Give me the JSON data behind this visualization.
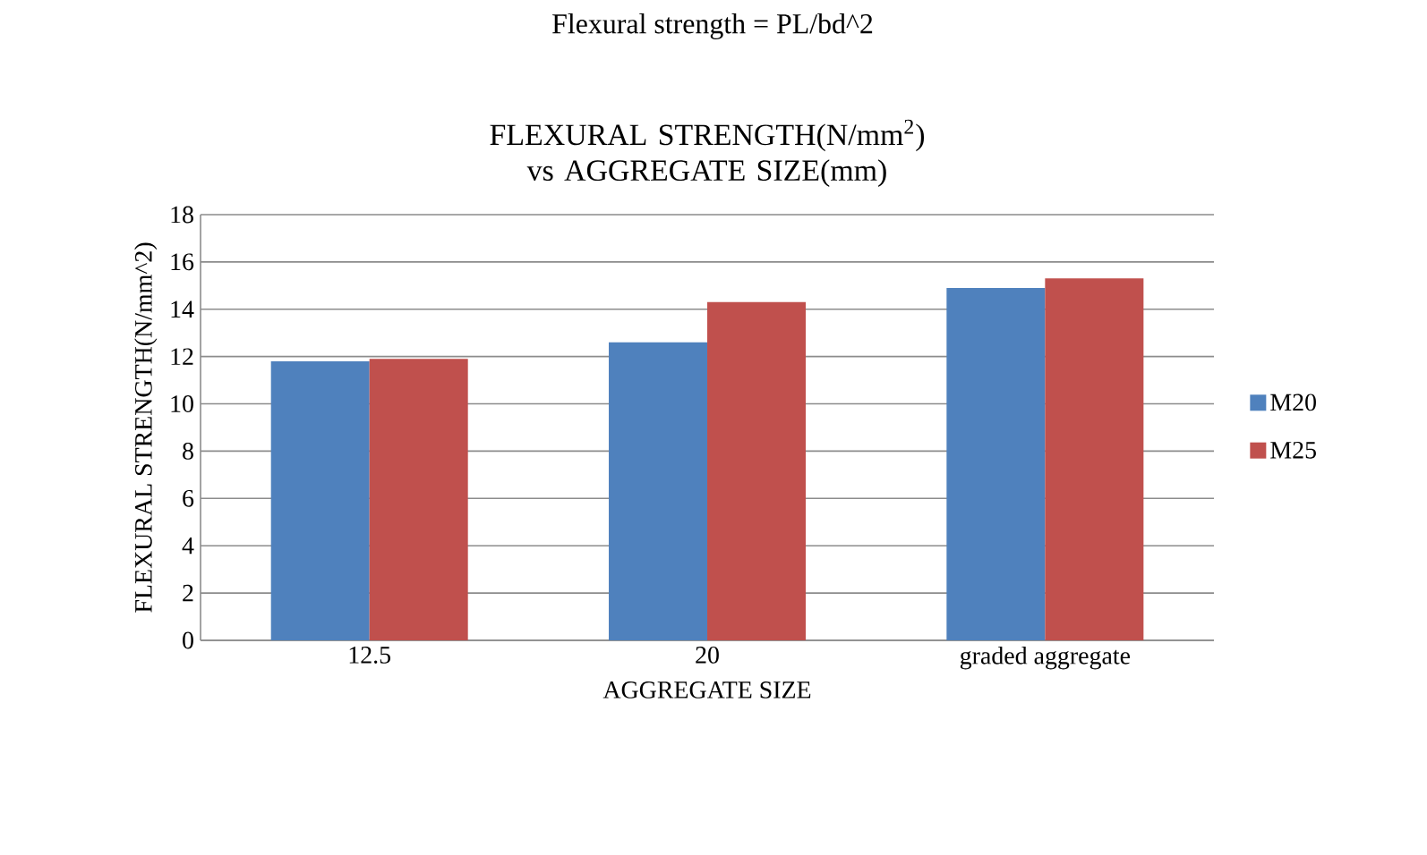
{
  "chart_data": {
    "type": "bar",
    "title": "FLEXURAL STRENGTH(N/mm$^{2}$) vs AGGREGATE SIZE(mm)",
    "xlabel": "AGGREGATE SIZE",
    "ylabel": "FLEXURAL STRENGTH(N/mm^2)",
    "annotations": [
      "Flexural strength = PL/bd^2"
    ],
    "categories": [
      "12.5",
      "20",
      "graded aggregate"
    ],
    "series": [
      {
        "name": "M20",
        "color": "#4f81bd",
        "values": [
          11.8,
          12.6,
          14.9
        ]
      },
      {
        "name": "M25",
        "color": "#c0504d",
        "values": [
          11.9,
          14.3,
          15.3
        ]
      }
    ],
    "ylim": [
      0,
      18
    ],
    "yticks": [
      0,
      2,
      4,
      6,
      8,
      10,
      12,
      14,
      16,
      18
    ],
    "grid": "y",
    "legend": "right"
  }
}
